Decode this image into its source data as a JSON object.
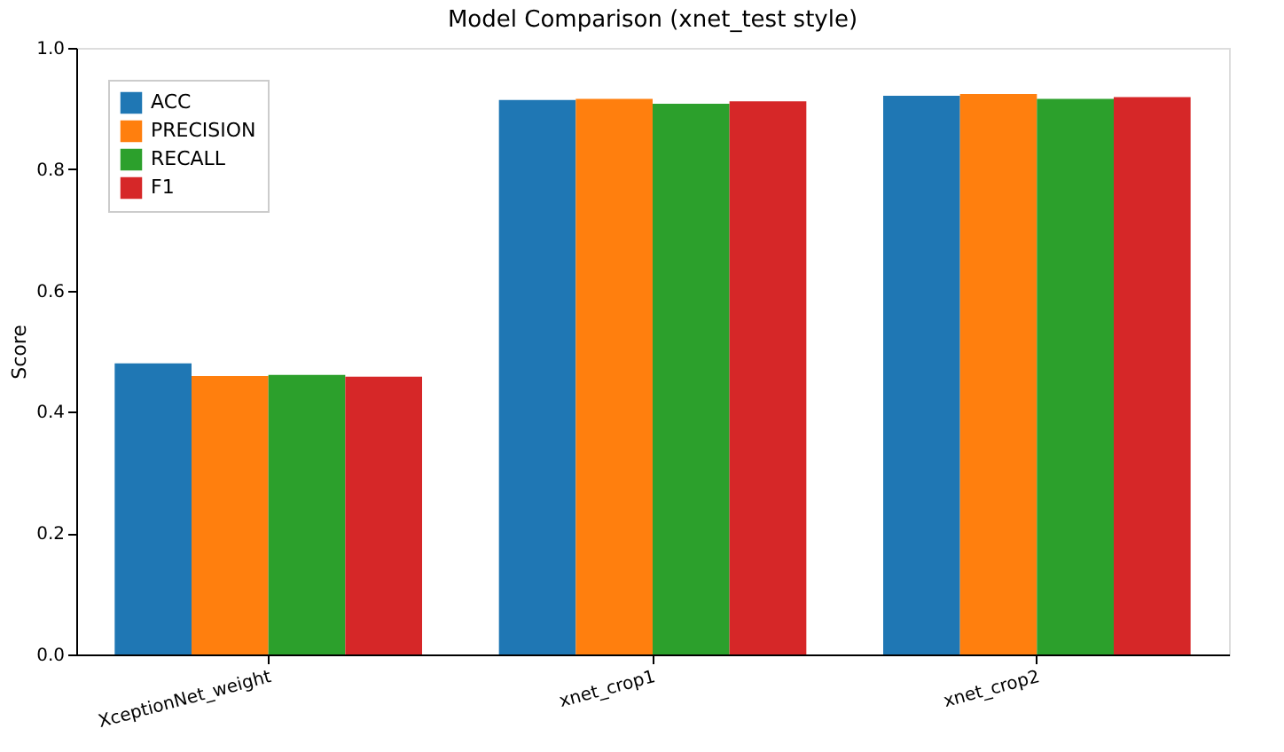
{
  "chart_data": {
    "type": "bar",
    "title": "Model Comparison (xnet_test style)",
    "ylabel": "Score",
    "categories": [
      "XceptionNet_weight",
      "xnet_crop1",
      "xnet_crop2"
    ],
    "series": [
      {
        "name": "ACC",
        "color": "#1f77b4",
        "values": [
          0.48,
          0.914,
          0.921
        ]
      },
      {
        "name": "PRECISION",
        "color": "#ff7f0e",
        "values": [
          0.459,
          0.916,
          0.924
        ]
      },
      {
        "name": "RECALL",
        "color": "#2ca02c",
        "values": [
          0.461,
          0.908,
          0.916
        ]
      },
      {
        "name": "F1",
        "color": "#d62728",
        "values": [
          0.458,
          0.912,
          0.919
        ]
      }
    ],
    "ylim": [
      0,
      1
    ],
    "yticks": [
      {
        "value": 0,
        "label": "0.0"
      },
      {
        "value": 0.2,
        "label": "0.2"
      },
      {
        "value": 0.4,
        "label": "0.4"
      },
      {
        "value": 0.6,
        "label": "0.6"
      },
      {
        "value": 0.8,
        "label": "0.8"
      },
      {
        "value": 1,
        "label": "1.0"
      }
    ],
    "grid": false,
    "legend": "top left"
  }
}
